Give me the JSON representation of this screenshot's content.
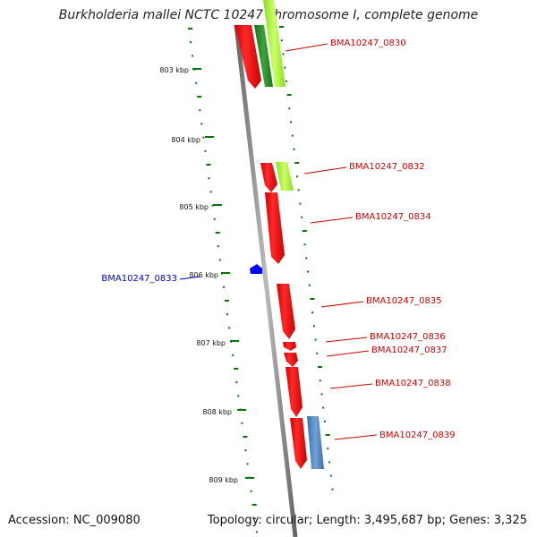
{
  "title": "Burkholderia mallei NCTC 10247 chromosome I, complete genome",
  "accession": "Accession: NC_009080",
  "stats": "Topology: circular; Length: 3,495,687 bp; Genes: 3,325",
  "colors": {
    "backbone": "#888888",
    "forward_gene": "#ff0000",
    "reverse_gene": "#0000ff",
    "green_feature": "#2e8b2e",
    "lime_feature": "#aaff33",
    "steelblue_feature": "#4f86c0",
    "tick": "#007700",
    "label_forward": "#cc0000",
    "label_reverse": "#0000cc"
  },
  "ticks": [
    {
      "label": "803 kbp"
    },
    {
      "label": "804 kbp"
    },
    {
      "label": "805 kbp"
    },
    {
      "label": "806 kbp"
    },
    {
      "label": "807 kbp"
    },
    {
      "label": "808 kbp"
    },
    {
      "label": "809 kbp"
    }
  ],
  "gene_labels": [
    {
      "name": "BMA10247_0830",
      "strand": "forward"
    },
    {
      "name": "BMA10247_0832",
      "strand": "forward"
    },
    {
      "name": "BMA10247_0834",
      "strand": "forward"
    },
    {
      "name": "BMA10247_0833",
      "strand": "reverse"
    },
    {
      "name": "BMA10247_0835",
      "strand": "forward"
    },
    {
      "name": "BMA10247_0836",
      "strand": "forward"
    },
    {
      "name": "BMA10247_0837",
      "strand": "forward"
    },
    {
      "name": "BMA10247_0838",
      "strand": "forward"
    },
    {
      "name": "BMA10247_0839",
      "strand": "forward"
    }
  ]
}
